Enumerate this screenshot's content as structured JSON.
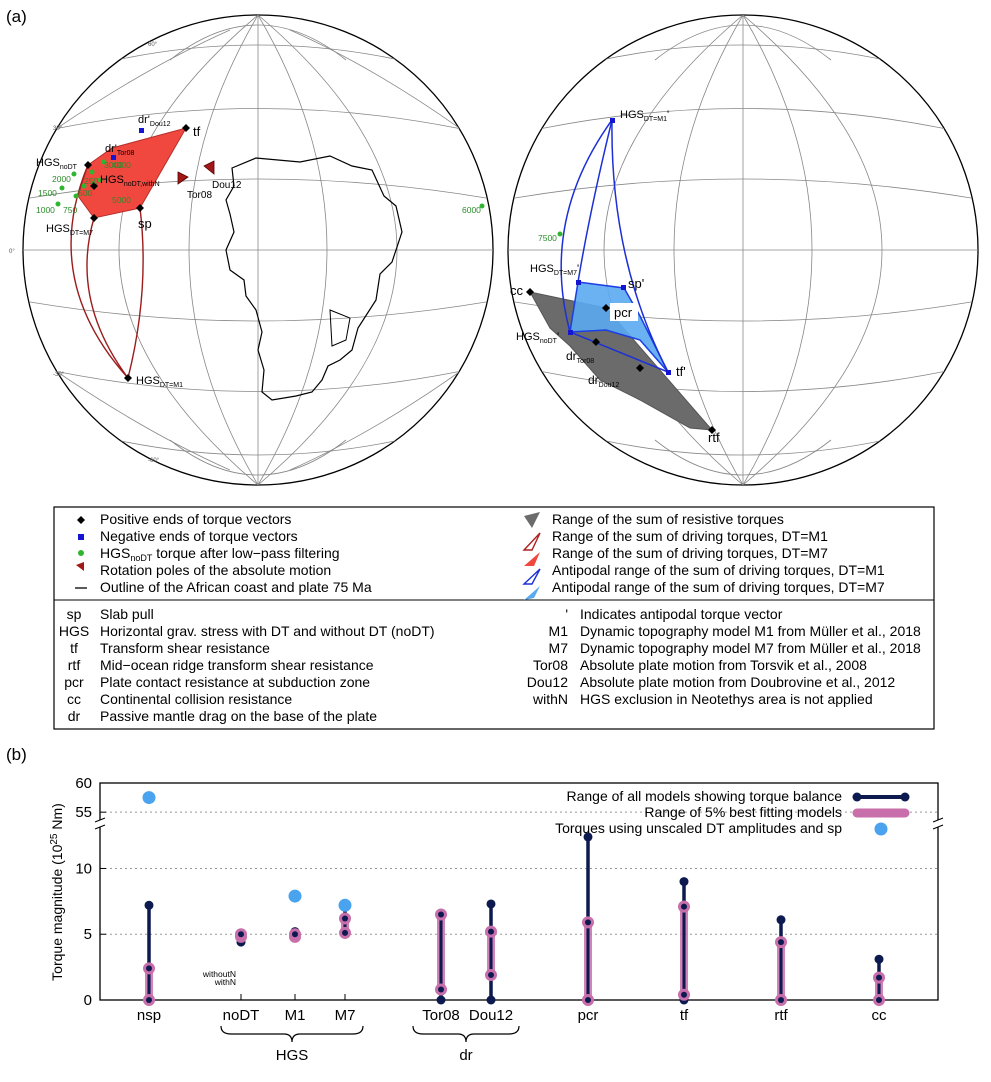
{
  "panel_a": {
    "label": "(a)",
    "left_globe": {
      "pole_labels": {
        "hgs_nodt": "HGS",
        "hgs_nodt_sub": "noDT",
        "hgs_nodt_withn": "HGS",
        "hgs_nodt_withn_sub": "noDT,withN",
        "hgs_m7": "HGS",
        "hgs_m7_sub": "DT=M7",
        "hgs_m1": "HGS",
        "hgs_m1_sub": "DT=M1",
        "dr_tor": "dr'",
        "dr_tor_sub": "Tor08",
        "dr_dou": "dr'",
        "dr_dou_sub": "Dou12",
        "tf": "tf",
        "sp": "sp",
        "tor08": "Tor08",
        "dou12": "Dou12"
      },
      "filter_labels": [
        "2000",
        "1500",
        "1000",
        "750",
        "500",
        "250",
        "3000",
        "5000",
        "4000",
        "6000"
      ],
      "lat_ticks": [
        "30°",
        "60°",
        "0°",
        "-30°",
        "-60°"
      ]
    },
    "right_globe": {
      "pole_labels": {
        "hgs_m1p": "HGS",
        "hgs_m1p_sub": "DT=M1",
        "hgs_m1p_prime": "'",
        "hgs_m7p": "HGS",
        "hgs_m7p_sub": "DT=M7",
        "hgs_m7p_prime": "'",
        "hgs_nodtp": "HGS",
        "hgs_nodtp_sub": "noDT",
        "hgs_nodtp_prime": "'",
        "sp": "sp'",
        "pcr": "pcr",
        "cc": "cc",
        "dr_tor": "dr",
        "dr_tor_sub": "Tor08",
        "dr_dou": "dr",
        "dr_dou_sub": "Dou12",
        "tf": "tf'",
        "rtf": "rtf",
        "filter_7500": "7500"
      }
    },
    "legend": {
      "symbols_left": [
        "Positive ends of torque vectors",
        "Negative ends of torque vectors",
        "HGS",
        "Rotation poles of the absolute motion",
        "Outline of the African coast and plate 75 Ma"
      ],
      "hgs_filter_sub": "noDT",
      "hgs_filter_rest": " torque after low−pass filtering",
      "symbols_right": [
        "Range of the sum of resistive torques",
        "Range of the sum of driving torques, DT=M1",
        "Range of the sum of driving torques, DT=M7",
        "Antipodal range of the sum of driving torques, DT=M1",
        "Antipodal range of the sum of driving torques, DT=M7"
      ],
      "abbrev_left": [
        {
          "key": "sp",
          "text": "Slab pull"
        },
        {
          "key": "HGS",
          "text": "Horizontal grav. stress with DT and without DT (noDT)"
        },
        {
          "key": "tf",
          "text": "Transform shear resistance"
        },
        {
          "key": "rtf",
          "text": "Mid−ocean ridge transform shear resistance"
        },
        {
          "key": "pcr",
          "text": "Plate contact resistance at subduction zone"
        },
        {
          "key": "cc",
          "text": "Continental collision resistance"
        },
        {
          "key": "dr",
          "text": "Passive mantle drag on the base of the plate"
        }
      ],
      "abbrev_right": [
        {
          "key": "'",
          "text": "Indicates antipodal torque vector"
        },
        {
          "key": "M1",
          "text": "Dynamic topography model M1 from Müller et al., 2018"
        },
        {
          "key": "M7",
          "text": "Dynamic topography model M7 from Müller et al., 2018"
        },
        {
          "key": "Tor08",
          "text": "Absolute plate motion from Torsvik et al., 2008"
        },
        {
          "key": "Dou12",
          "text": "Absolute plate motion from Doubrovine et al., 2012"
        },
        {
          "key": "withN",
          "text": "HGS exclusion in Neotethys area is not applied"
        }
      ]
    }
  },
  "panel_b": {
    "label": "(b)",
    "legend": [
      "Range of all models showing torque balance",
      "Range of 5% best fitting models",
      "Torques using unscaled DT amplitudes and sp"
    ],
    "group_labels": {
      "hgs": "HGS",
      "dr": "dr"
    },
    "annotations": {
      "withoutN": "withoutN",
      "withN": "withN"
    },
    "colors": {
      "all_range": "#0d1a4f",
      "best_range": "#c86eaa",
      "unscaled": "#4aa3ef"
    }
  },
  "chart_data": {
    "type": "range",
    "ylabel": "Torque magnitude (10",
    "ylabel_sup": "25",
    "ylabel_tail": " Nm)",
    "y_lower_range": [
      0,
      13
    ],
    "y_upper_range": [
      54,
      60
    ],
    "y_ticks_lower": [
      "0",
      "5",
      "10"
    ],
    "y_ticks_upper": [
      "55",
      "60"
    ],
    "y_tick_values_lower": [
      0,
      5,
      10
    ],
    "y_tick_values_upper": [
      55,
      60
    ],
    "broken_axis": true,
    "categories": [
      "nsp",
      "noDT",
      "M1",
      "M7",
      "Tor08",
      "Dou12",
      "pcr",
      "tf",
      "rtf",
      "cc"
    ],
    "series": [
      {
        "name": "Range of all models showing torque balance",
        "ranges": [
          [
            0,
            7.2
          ],
          [
            4.4,
            5.0
          ],
          [
            4.8,
            5.2
          ],
          [
            5.0,
            7.2
          ],
          [
            0,
            6.5
          ],
          [
            0,
            7.3
          ],
          [
            0,
            12.4
          ],
          [
            0,
            9.0
          ],
          [
            0,
            6.1
          ],
          [
            0,
            3.1
          ]
        ]
      },
      {
        "name": "Range of 5% best fitting models",
        "ranges": [
          [
            0,
            2.4
          ],
          [
            4.8,
            5.0
          ],
          [
            4.8,
            5.0
          ],
          [
            5.1,
            6.2
          ],
          [
            0.8,
            6.5
          ],
          [
            1.9,
            5.2
          ],
          [
            0,
            5.9
          ],
          [
            0.4,
            7.1
          ],
          [
            0,
            4.4
          ],
          [
            0,
            1.7
          ]
        ]
      },
      {
        "name": "Torques using unscaled DT amplitudes and sp",
        "values": [
          57.5,
          null,
          7.9,
          7.2,
          null,
          null,
          null,
          null,
          null,
          null
        ]
      }
    ]
  }
}
